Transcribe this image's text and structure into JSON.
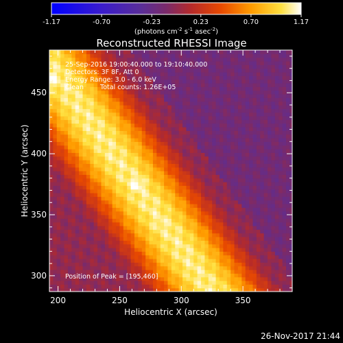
{
  "chart_data": {
    "type": "heatmap",
    "title": "Reconstructed RHESSI Image",
    "xlabel": "Heliocentric X (arcsec)",
    "ylabel": "Heliocentric Y (arcsec)",
    "xlim": [
      193,
      390
    ],
    "ylim": [
      287,
      485
    ],
    "x_ticks": [
      200,
      250,
      300,
      350
    ],
    "y_ticks": [
      300,
      350,
      400,
      450
    ],
    "colorbar": {
      "min": -1.17,
      "max": 1.17,
      "ticks": [
        "-1.17",
        "-0.70",
        "-0.23",
        "0.23",
        "0.70",
        "1.17"
      ],
      "tick_values": [
        -1.17,
        -0.7,
        -0.23,
        0.23,
        0.7,
        1.17
      ],
      "label_prefix": "(photons cm",
      "label_exp1": "-2",
      "label_mid": " s",
      "label_exp2": "-1",
      "label_mid2": " asec",
      "label_exp3": "-2",
      "label_suffix": ")"
    },
    "annotations": {
      "time_range": "25-Sep-2016 19:00:40.000 to 19:10:40.000",
      "detectors": "Detectors: 3F 8F, Att 0",
      "energy_range": "Energy Range: 3.0 - 6.0 keV",
      "clean": "Clean",
      "total_counts": "Total counts: 1.26E+05",
      "peak_position": "Position of Peak = [195,460]"
    },
    "peaks": [
      {
        "x": 264,
        "y": 375,
        "value": 1.17
      },
      {
        "x": 283,
        "y": 343,
        "value": 1.1
      },
      {
        "x": 196,
        "y": 462,
        "value": 1.15
      }
    ],
    "band": {
      "axis_from": [
        195,
        470
      ],
      "axis_to": [
        330,
        280
      ],
      "background_value": -0.4,
      "peak_value": 1.05
    },
    "timestamp": "26-Nov-2017 21:44"
  }
}
